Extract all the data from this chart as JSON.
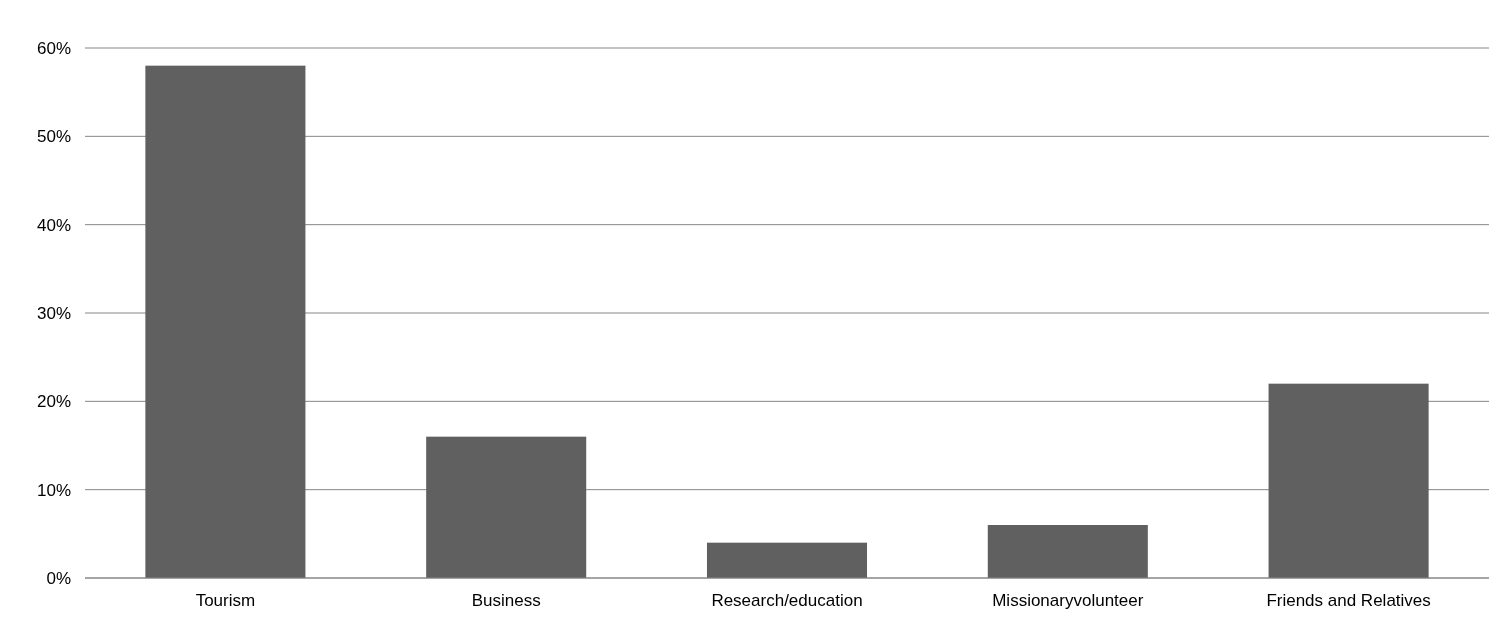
{
  "chart_data": {
    "type": "bar",
    "categories": [
      "Tourism",
      "Business",
      "Research/education",
      "Missionaryvolunteer",
      "Friends and Relatives"
    ],
    "values": [
      58,
      16,
      4,
      6,
      22
    ],
    "color": "#606060",
    "ylim": [
      0,
      60
    ],
    "yticks": [
      {
        "value": 0,
        "label": "0%"
      },
      {
        "value": 10,
        "label": "10%"
      },
      {
        "value": 20,
        "label": "20%"
      },
      {
        "value": 30,
        "label": "30%"
      },
      {
        "value": 40,
        "label": "40%"
      },
      {
        "value": 50,
        "label": "50%"
      },
      {
        "value": 60,
        "label": "60%"
      }
    ],
    "grid": "y"
  }
}
